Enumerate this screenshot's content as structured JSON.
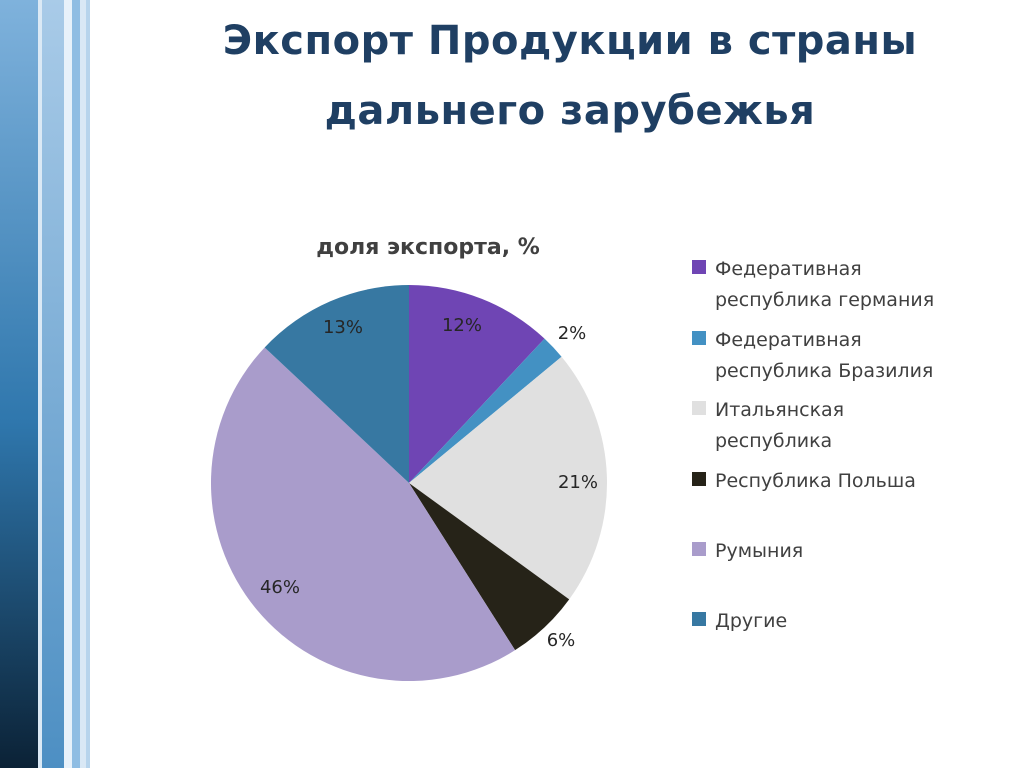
{
  "slide": {
    "title_line1": "Экспорт Продукции в страны",
    "title_line2": "дальнего зарубежья"
  },
  "chart_data": {
    "type": "pie",
    "title": "доля экспорта, %",
    "legend_position": "right",
    "slices": [
      {
        "name": "Федеративная республика германия",
        "legend_lines": [
          "Федеративная",
          "республика германия"
        ],
        "value": 12,
        "label": "12%",
        "color": "#6f45b4"
      },
      {
        "name": "Федеративная республика Бразилия",
        "legend_lines": [
          "Федеративная",
          "республика Бразилия"
        ],
        "value": 2,
        "label": "2%",
        "color": "#4391c3"
      },
      {
        "name": "Итальянская республика",
        "legend_lines": [
          "Итальянская",
          "республика"
        ],
        "value": 21,
        "label": "21%",
        "color": "#e0e0e0"
      },
      {
        "name": "Республика Польша",
        "legend_lines": [
          "Республика Польша"
        ],
        "value": 6,
        "label": "6%",
        "color": "#262318"
      },
      {
        "name": "Румыния",
        "legend_lines": [
          "Румыния"
        ],
        "value": 46,
        "label": "46%",
        "color": "#a99ccb"
      },
      {
        "name": "Другие",
        "legend_lines": [
          "Другие"
        ],
        "value": 13,
        "label": "13%",
        "color": "#3778a2"
      }
    ]
  }
}
